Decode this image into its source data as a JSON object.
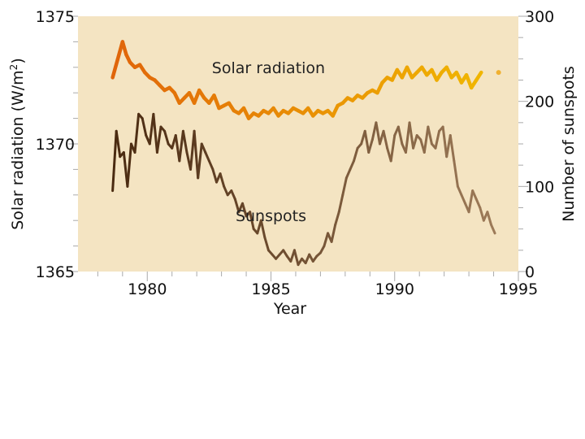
{
  "chart_data": {
    "type": "line",
    "xlabel": "Year",
    "ylabel_left": "Solar radiation (W/m",
    "ylabel_left_sup": "2",
    "ylabel_left_close": ")",
    "ylabel_right": "Number of sunspots",
    "xlim": [
      1977.2,
      1995
    ],
    "x_ticks": [
      1980,
      1985,
      1990,
      1995
    ],
    "x_minor_step": 1,
    "ylim_left": [
      1365,
      1375
    ],
    "y_ticks_left": [
      1365,
      1370,
      1375
    ],
    "ylim_right": [
      0,
      300
    ],
    "y_ticks_right": [
      0,
      100,
      200,
      300
    ],
    "grid": false,
    "background": "#f4e4c2",
    "series": [
      {
        "name": "Solar radiation",
        "axis": "left",
        "color_start": "#e0650a",
        "color_end": "#f0b500",
        "x": [
          1978.6,
          1978.8,
          1979.0,
          1979.15,
          1979.3,
          1979.5,
          1979.7,
          1979.9,
          1980.1,
          1980.3,
          1980.5,
          1980.7,
          1980.9,
          1981.1,
          1981.3,
          1981.5,
          1981.7,
          1981.9,
          1982.1,
          1982.3,
          1982.5,
          1982.7,
          1982.9,
          1983.1,
          1983.3,
          1983.5,
          1983.7,
          1983.9,
          1984.1,
          1984.3,
          1984.5,
          1984.7,
          1984.9,
          1985.1,
          1985.3,
          1985.5,
          1985.7,
          1985.9,
          1986.1,
          1986.3,
          1986.5,
          1986.7,
          1986.9,
          1987.1,
          1987.3,
          1987.5,
          1987.7,
          1987.9,
          1988.1,
          1988.3,
          1988.5,
          1988.7,
          1988.9,
          1989.1,
          1989.3,
          1989.5,
          1989.7,
          1989.9,
          1990.1,
          1990.3,
          1990.5,
          1990.7,
          1990.9,
          1991.1,
          1991.3,
          1991.5,
          1991.7,
          1991.9,
          1992.1,
          1992.3,
          1992.5,
          1992.7,
          1992.9,
          1993.1,
          1993.3,
          1993.5
        ],
        "values": [
          1372.6,
          1373.3,
          1374.0,
          1373.5,
          1373.2,
          1373.0,
          1373.1,
          1372.8,
          1372.6,
          1372.5,
          1372.3,
          1372.1,
          1372.2,
          1372.0,
          1371.6,
          1371.8,
          1372.0,
          1371.6,
          1372.1,
          1371.8,
          1371.6,
          1371.9,
          1371.4,
          1371.5,
          1371.6,
          1371.3,
          1371.2,
          1371.4,
          1371.0,
          1371.2,
          1371.1,
          1371.3,
          1371.2,
          1371.4,
          1371.1,
          1371.3,
          1371.2,
          1371.4,
          1371.3,
          1371.2,
          1371.4,
          1371.1,
          1371.3,
          1371.2,
          1371.3,
          1371.1,
          1371.5,
          1371.6,
          1371.8,
          1371.7,
          1371.9,
          1371.8,
          1372.0,
          1372.1,
          1372.0,
          1372.4,
          1372.6,
          1372.5,
          1372.9,
          1372.6,
          1373.0,
          1372.6,
          1372.8,
          1373.0,
          1372.7,
          1372.9,
          1372.5,
          1372.8,
          1373.0,
          1372.6,
          1372.8,
          1372.4,
          1372.7,
          1372.2,
          1372.5,
          1372.8
        ]
      },
      {
        "name": "Solar radiation (isolated point)",
        "axis": "left",
        "color": "#f0b030",
        "x": [
          1994.2
        ],
        "values": [
          1372.8
        ]
      },
      {
        "name": "Sunspots",
        "axis": "right",
        "color_start": "#4a2a10",
        "color_end": "#9c7a58",
        "x": [
          1978.6,
          1978.75,
          1978.9,
          1979.05,
          1979.2,
          1979.35,
          1979.5,
          1979.65,
          1979.8,
          1979.95,
          1980.1,
          1980.25,
          1980.4,
          1980.55,
          1980.7,
          1980.85,
          1981.0,
          1981.15,
          1981.3,
          1981.45,
          1981.6,
          1981.75,
          1981.9,
          1982.05,
          1982.2,
          1982.35,
          1982.5,
          1982.65,
          1982.8,
          1982.95,
          1983.1,
          1983.25,
          1983.4,
          1983.55,
          1983.7,
          1983.85,
          1984.0,
          1984.15,
          1984.3,
          1984.45,
          1984.6,
          1984.75,
          1984.9,
          1985.05,
          1985.2,
          1985.35,
          1985.5,
          1985.65,
          1985.8,
          1985.95,
          1986.1,
          1986.25,
          1986.4,
          1986.55,
          1986.7,
          1986.85,
          1987.0,
          1987.15,
          1987.3,
          1987.45,
          1987.6,
          1987.75,
          1987.9,
          1988.05,
          1988.2,
          1988.35,
          1988.5,
          1988.65,
          1988.8,
          1988.95,
          1989.1,
          1989.25,
          1989.4,
          1989.55,
          1989.7,
          1989.85,
          1990.0,
          1990.15,
          1990.3,
          1990.45,
          1990.6,
          1990.75,
          1990.9,
          1991.05,
          1991.2,
          1991.35,
          1991.5,
          1991.65,
          1991.8,
          1991.95,
          1992.1,
          1992.25,
          1992.4,
          1992.55,
          1992.7,
          1992.85,
          1993.0,
          1993.15,
          1993.3,
          1993.45,
          1993.6,
          1993.75,
          1993.9,
          1994.05
        ],
        "values": [
          95,
          165,
          135,
          140,
          100,
          150,
          140,
          185,
          180,
          160,
          150,
          185,
          140,
          170,
          165,
          150,
          145,
          160,
          130,
          165,
          140,
          120,
          165,
          110,
          150,
          140,
          130,
          120,
          105,
          115,
          100,
          90,
          95,
          85,
          70,
          80,
          65,
          70,
          50,
          45,
          60,
          40,
          25,
          20,
          15,
          20,
          25,
          18,
          12,
          25,
          8,
          15,
          10,
          20,
          12,
          18,
          22,
          30,
          45,
          35,
          55,
          70,
          90,
          110,
          120,
          130,
          145,
          150,
          165,
          140,
          155,
          175,
          150,
          165,
          145,
          130,
          160,
          170,
          150,
          140,
          175,
          145,
          160,
          155,
          140,
          170,
          150,
          145,
          165,
          170,
          135,
          160,
          130,
          100,
          90,
          80,
          70,
          95,
          85,
          75,
          60,
          70,
          55,
          45
        ]
      }
    ],
    "annotations": [
      {
        "text": "Solar radiation",
        "x": 1984.9,
        "y_left": 1373.0
      },
      {
        "text": "Sunspots",
        "x": 1985.0,
        "y_left": 1367.2
      }
    ]
  }
}
